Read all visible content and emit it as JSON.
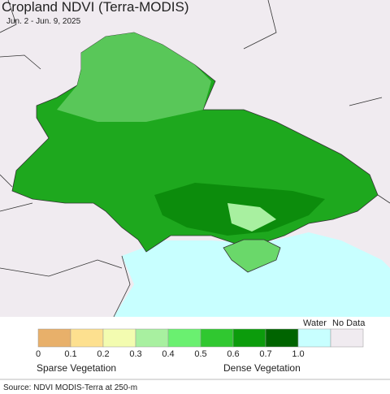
{
  "header": {
    "title": "Cropland NDVI (Terra-MODIS)",
    "subtitle": "Jun. 2 - Jun. 9, 2025"
  },
  "legend": {
    "ticks": [
      "0",
      "0.1",
      "0.2",
      "0.3",
      "0.4",
      "0.5",
      "0.6",
      "0.7",
      "1.0"
    ],
    "water": "Water",
    "no_data": "No Data",
    "sparse": "Sparse Vegetation",
    "dense": "Dense Vegetation"
  },
  "source": "Source: NDVI MODIS-Terra at 250-m"
}
